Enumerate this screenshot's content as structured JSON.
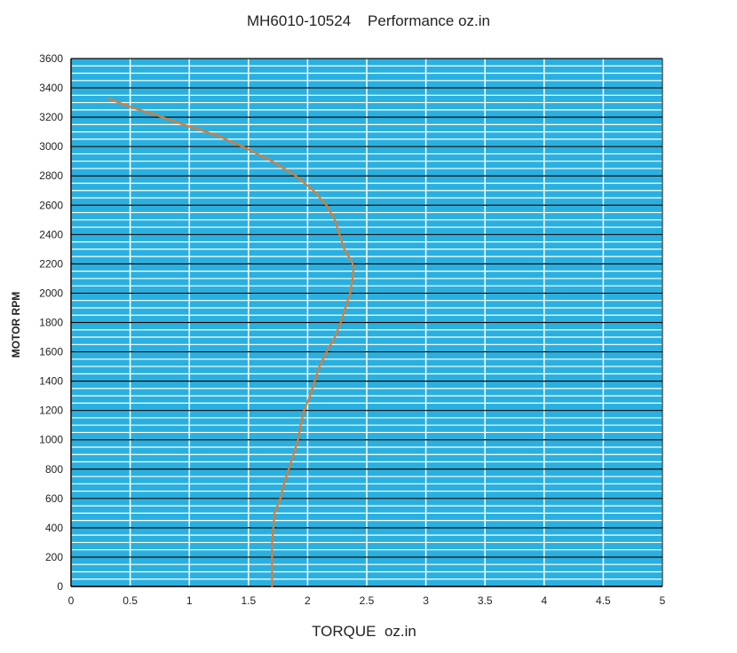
{
  "chart_data": {
    "type": "line",
    "title": "MH6010-10524    Performance oz.in",
    "xlabel": "TORQUE  oz.in",
    "ylabel": "MOTOR RPM",
    "xlim": [
      0,
      5
    ],
    "ylim": [
      0,
      3600
    ],
    "x_ticks": [
      0,
      0.5,
      1,
      1.5,
      2,
      2.5,
      3,
      3.5,
      4,
      4.5,
      5
    ],
    "x_tick_labels": [
      "0",
      "0.5",
      "1",
      "1.5",
      "2",
      "2.5",
      "3",
      "3.5",
      "4",
      "4.5",
      "5"
    ],
    "y_ticks": [
      0,
      200,
      400,
      600,
      800,
      1000,
      1200,
      1400,
      1600,
      1800,
      2000,
      2200,
      2400,
      2600,
      2800,
      3000,
      3200,
      3400,
      3600
    ],
    "y_tick_labels": [
      "0",
      "200",
      "400",
      "600",
      "800",
      "1000",
      "1200",
      "1400",
      "1600",
      "1800",
      "2000",
      "2200",
      "2400",
      "2600",
      "2800",
      "3000",
      "3200",
      "3400",
      "3600"
    ],
    "grid": true,
    "plot_background": "#2ab0e0",
    "minor_grid_color": "#ffffff",
    "major_grid_color": "#000000",
    "series": [
      {
        "color": "#e07a30",
        "points": [
          [
            1.7,
            0
          ],
          [
            1.7,
            100
          ],
          [
            1.7,
            200
          ],
          [
            1.7,
            300
          ],
          [
            1.71,
            400
          ],
          [
            1.72,
            500
          ],
          [
            1.77,
            600
          ],
          [
            1.8,
            700
          ],
          [
            1.84,
            800
          ],
          [
            1.88,
            900
          ],
          [
            1.92,
            1000
          ],
          [
            1.94,
            1100
          ],
          [
            1.97,
            1200
          ],
          [
            2.02,
            1300
          ],
          [
            2.06,
            1400
          ],
          [
            2.1,
            1500
          ],
          [
            2.16,
            1600
          ],
          [
            2.23,
            1700
          ],
          [
            2.28,
            1800
          ],
          [
            2.32,
            1900
          ],
          [
            2.36,
            2000
          ],
          [
            2.38,
            2100
          ],
          [
            2.39,
            2180
          ],
          [
            2.37,
            2220
          ],
          [
            2.31,
            2300
          ],
          [
            2.27,
            2400
          ],
          [
            2.23,
            2500
          ],
          [
            2.16,
            2600
          ],
          [
            2.05,
            2700
          ],
          [
            1.9,
            2800
          ],
          [
            1.7,
            2900
          ],
          [
            1.45,
            3000
          ],
          [
            1.22,
            3080
          ],
          [
            0.95,
            3150
          ],
          [
            0.7,
            3220
          ],
          [
            0.5,
            3270
          ],
          [
            0.34,
            3320
          ],
          [
            0.32,
            3330
          ]
        ]
      }
    ]
  }
}
